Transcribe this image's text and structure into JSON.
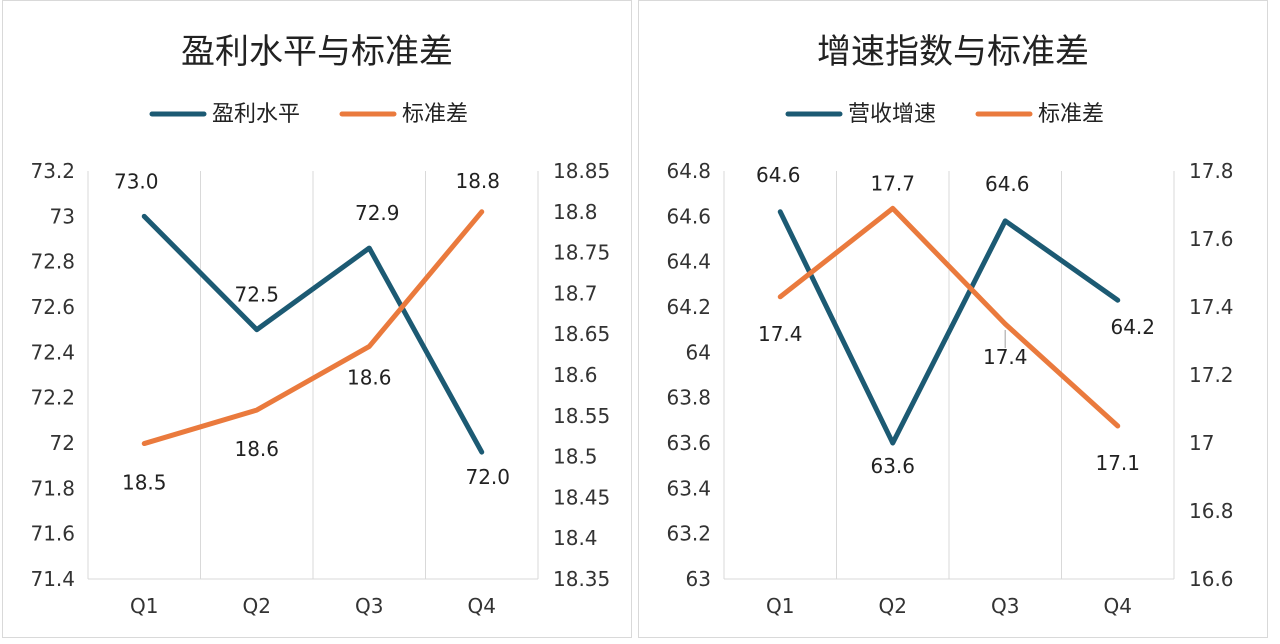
{
  "colors": {
    "primary": "#1c5a73",
    "secondary": "#ea7a3d",
    "grid": "#d9d9d9"
  },
  "chart_data": [
    {
      "type": "line",
      "title": "盈利水平与标准差",
      "categories": [
        "Q1",
        "Q2",
        "Q3",
        "Q4"
      ],
      "series": [
        {
          "name": "盈利水平",
          "axis": "left",
          "values": [
            73.0,
            72.5,
            72.86,
            71.96
          ],
          "labels": [
            "73.0",
            "72.5",
            "72.9",
            "72.0"
          ]
        },
        {
          "name": "标准差",
          "axis": "right",
          "values": [
            18.516,
            18.557,
            18.635,
            18.8
          ],
          "labels": [
            "18.5",
            "18.6",
            "18.6",
            "18.8"
          ]
        }
      ],
      "y_left": {
        "min": 71.4,
        "max": 73.2,
        "ticks": [
          "73.2",
          "73",
          "72.8",
          "72.6",
          "72.4",
          "72.2",
          "72",
          "71.8",
          "71.6",
          "71.4"
        ]
      },
      "y_right": {
        "min": 18.35,
        "max": 18.85,
        "ticks": [
          "18.85",
          "18.8",
          "18.75",
          "18.7",
          "18.65",
          "18.6",
          "18.55",
          "18.5",
          "18.45",
          "18.4",
          "18.35"
        ]
      },
      "grid": "vertical",
      "legend": "top-center"
    },
    {
      "type": "line",
      "title": "增速指数与标准差",
      "categories": [
        "Q1",
        "Q2",
        "Q3",
        "Q4"
      ],
      "series": [
        {
          "name": "营收增速",
          "axis": "left",
          "values": [
            64.62,
            63.6,
            64.58,
            64.23
          ],
          "labels": [
            "64.6",
            "63.6",
            "64.6",
            "64.2"
          ]
        },
        {
          "name": "标准差",
          "axis": "right",
          "values": [
            17.43,
            17.69,
            17.35,
            17.05
          ],
          "labels": [
            "17.4",
            "17.7",
            "17.4",
            "17.1"
          ]
        }
      ],
      "y_left": {
        "min": 63,
        "max": 64.8,
        "ticks": [
          "64.8",
          "64.6",
          "64.4",
          "64.2",
          "64",
          "63.8",
          "63.6",
          "63.4",
          "63.2",
          "63"
        ]
      },
      "y_right": {
        "min": 16.6,
        "max": 17.8,
        "ticks": [
          "17.8",
          "17.6",
          "17.4",
          "17.2",
          "17",
          "16.8",
          "16.6"
        ]
      },
      "grid": "vertical",
      "legend": "top-center"
    }
  ]
}
